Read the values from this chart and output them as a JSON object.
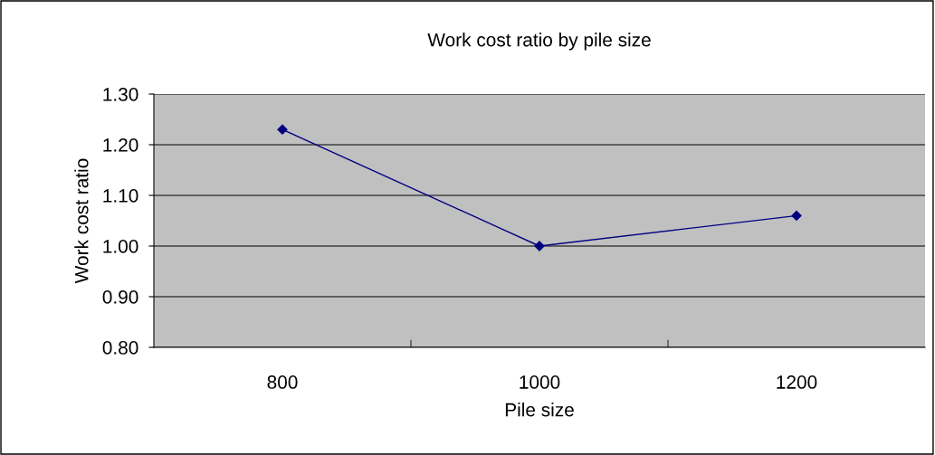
{
  "chart_data": {
    "type": "line",
    "title": "Work cost ratio by pile size",
    "xlabel": "Pile size",
    "ylabel": "Work cost ratio",
    "categories": [
      "800",
      "1000",
      "1200"
    ],
    "series": [
      {
        "color": "#000080",
        "values": [
          1.23,
          1.0,
          1.06
        ]
      }
    ],
    "ylim": [
      0.8,
      1.3
    ],
    "yticks": [
      {
        "value": 0.8,
        "label": "0.80"
      },
      {
        "value": 0.9,
        "label": "0.90"
      },
      {
        "value": 1.0,
        "label": "1.00"
      },
      {
        "value": 1.1,
        "label": "1.10"
      },
      {
        "value": 1.2,
        "label": "1.20"
      },
      {
        "value": 1.3,
        "label": "1.30"
      }
    ],
    "grid": "y",
    "marker": "diamond",
    "line_style": "solid",
    "legend": false
  }
}
